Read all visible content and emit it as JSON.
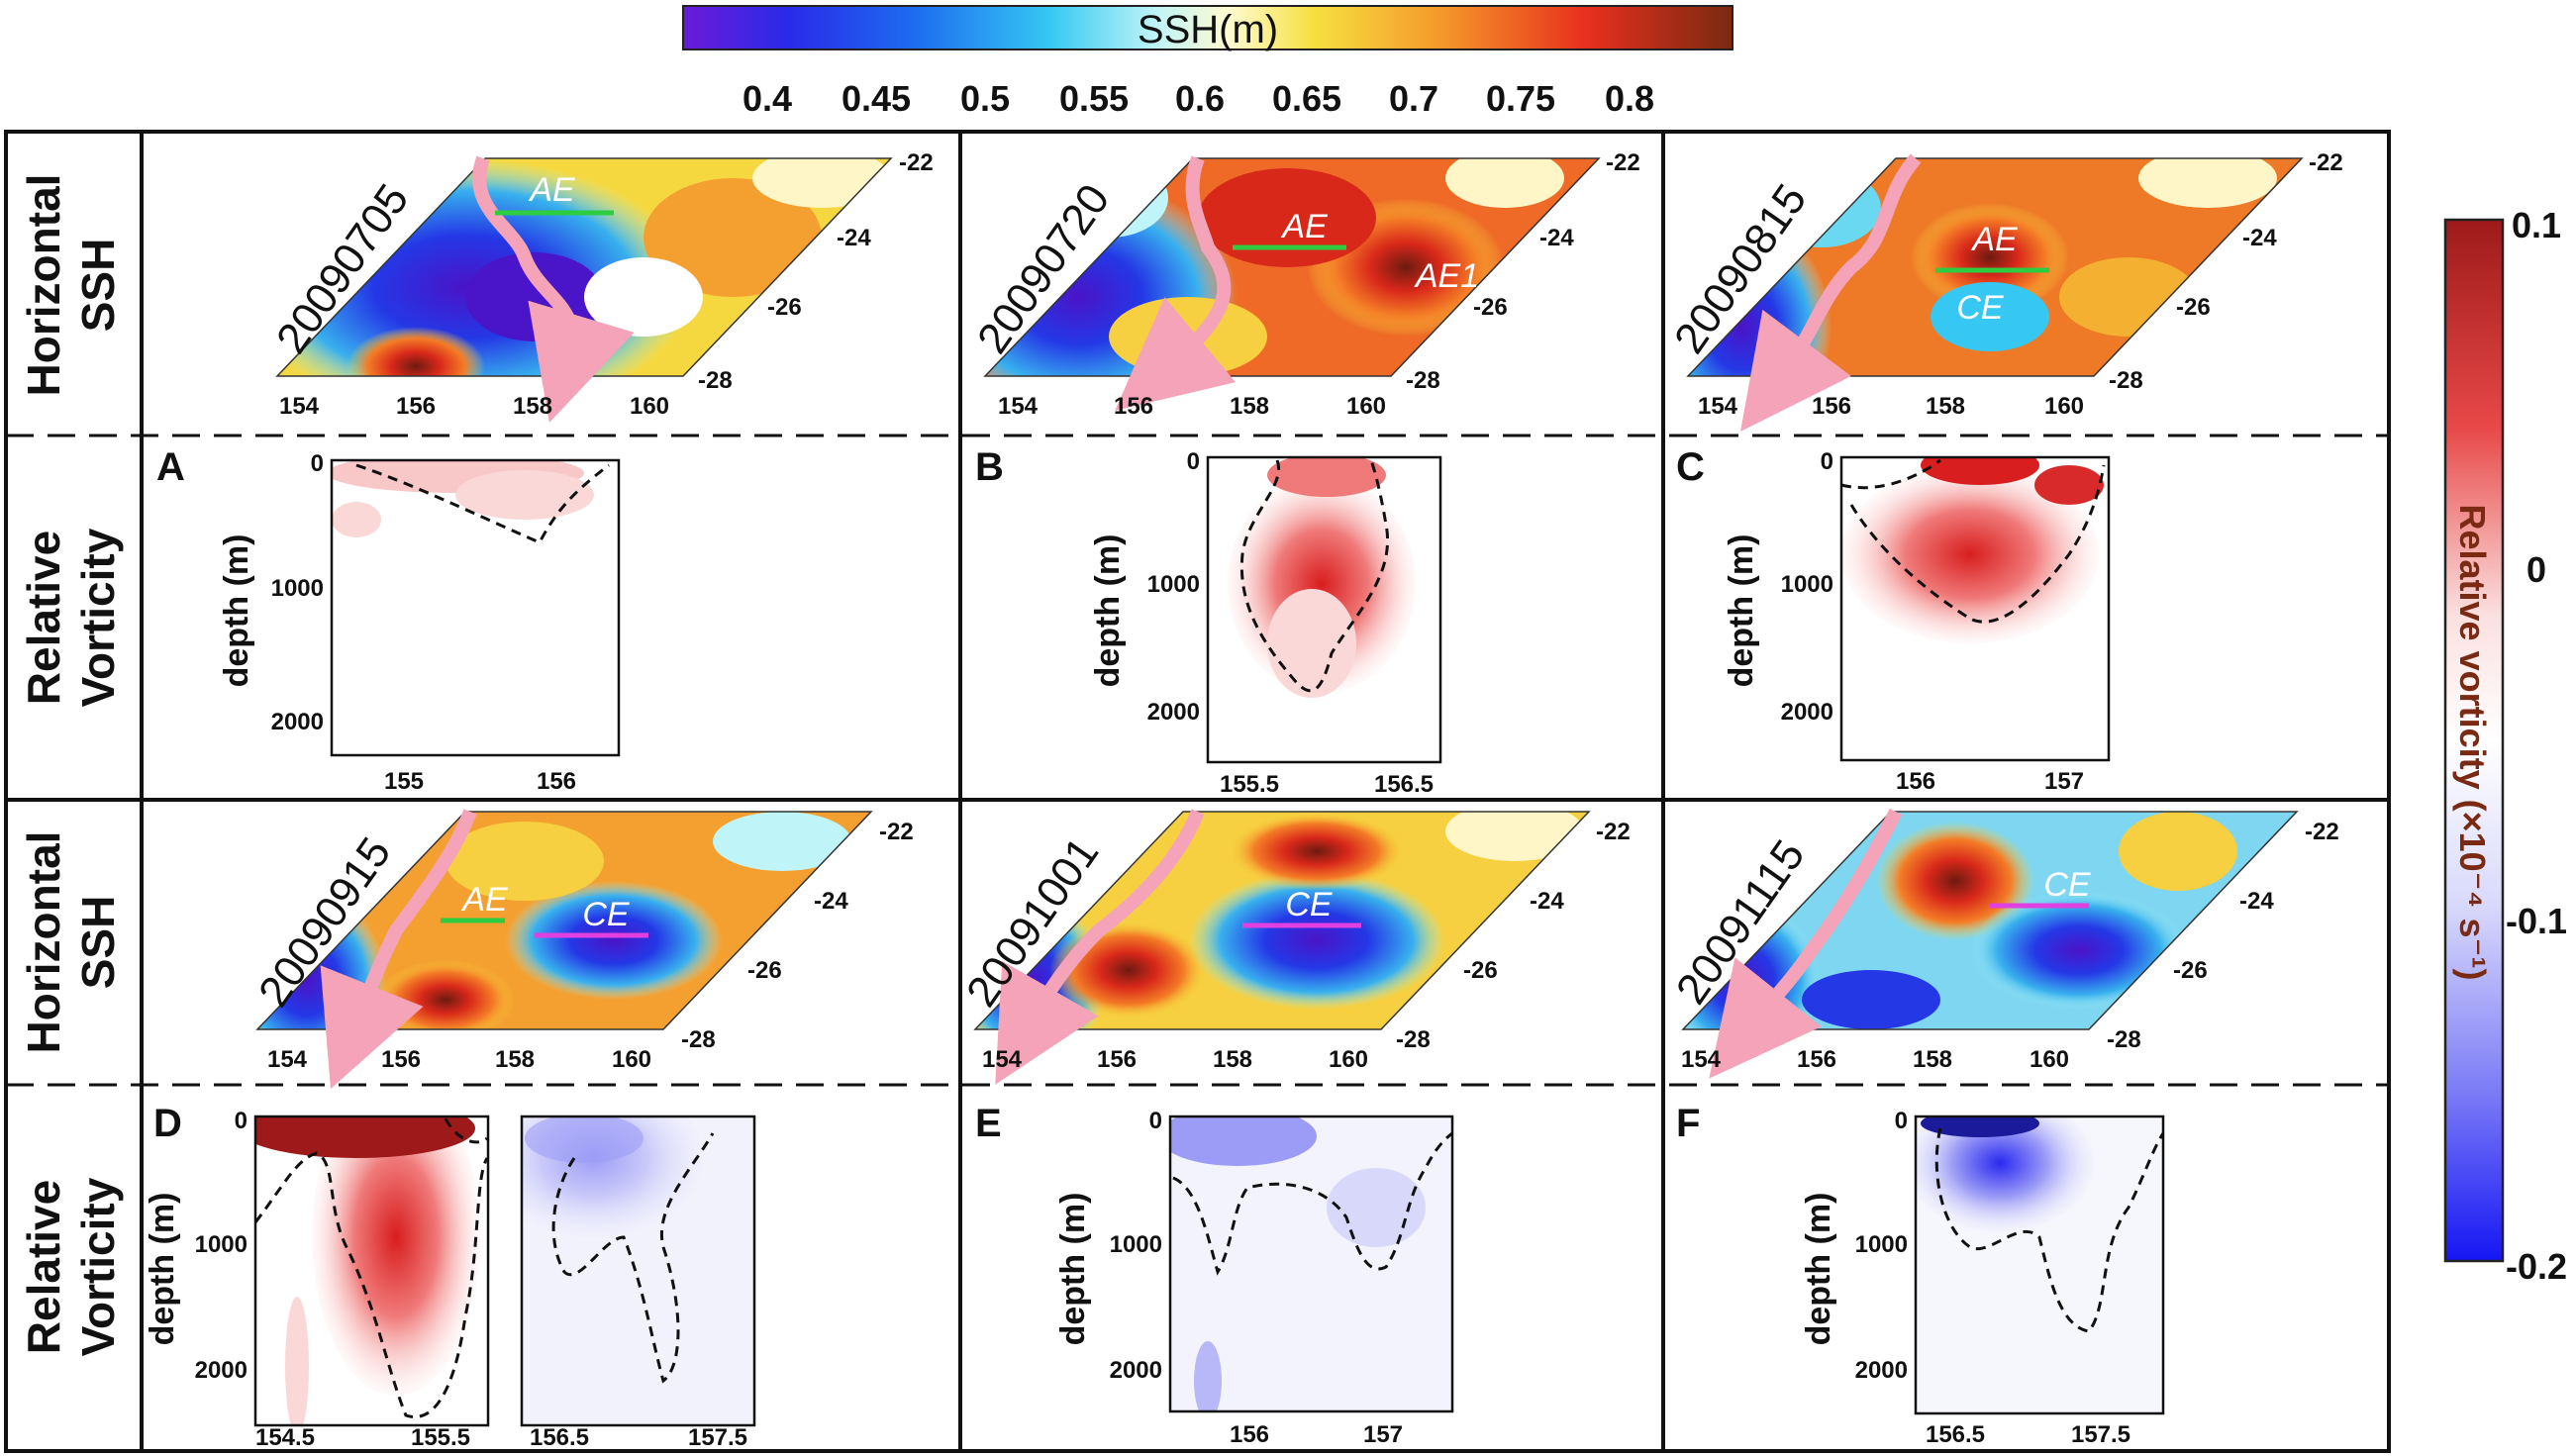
{
  "ssh_colorbar": {
    "title": "SSH(m)",
    "ticks": [
      "0.4",
      "0.45",
      "0.5",
      "0.55",
      "0.6",
      "0.65",
      "0.7",
      "0.75",
      "0.8"
    ]
  },
  "rows": [
    {
      "line1": "Horizontal",
      "line2": "SSH"
    },
    {
      "line1": "Relative",
      "line2": "Vorticity"
    },
    {
      "line1": "Horizontal",
      "line2": "SSH"
    },
    {
      "line1": "Relative",
      "line2": "Vorticity"
    }
  ],
  "ssh_maps": [
    {
      "date": "20090705",
      "labels": [
        "AE"
      ]
    },
    {
      "date": "20090720",
      "labels": [
        "AE",
        "AE1"
      ]
    },
    {
      "date": "20090815",
      "labels": [
        "AE",
        "CE"
      ]
    },
    {
      "date": "20090915",
      "labels": [
        "AE",
        "CE"
      ]
    },
    {
      "date": "20091001",
      "labels": [
        "CE"
      ]
    },
    {
      "date": "20091115",
      "labels": [
        "CE"
      ]
    }
  ],
  "map_axis": {
    "lon_ticks": [
      "154",
      "156",
      "158",
      "160"
    ],
    "lat_ticks": [
      "-22",
      "-24",
      "-26",
      "-28"
    ]
  },
  "vorticity_panels": [
    {
      "letter": "A",
      "ylabel": "depth (m)",
      "yticks": [
        "0",
        "1000",
        "2000"
      ],
      "xticks": [
        "155",
        "156"
      ]
    },
    {
      "letter": "B",
      "ylabel": "depth (m)",
      "yticks": [
        "0",
        "1000",
        "2000"
      ],
      "xticks": [
        "155.5",
        "156.5"
      ]
    },
    {
      "letter": "C",
      "ylabel": "depth (m)",
      "yticks": [
        "0",
        "1000",
        "2000"
      ],
      "xticks": [
        "156",
        "157"
      ]
    },
    {
      "letter": "D",
      "ylabel": "depth (m)",
      "yticks": [
        "0",
        "1000",
        "2000"
      ],
      "xticks": [
        "154.5",
        "155.5"
      ],
      "xticks2": [
        "156.5",
        "157.5"
      ]
    },
    {
      "letter": "E",
      "ylabel": "depth (m)",
      "yticks": [
        "0",
        "1000",
        "2000"
      ],
      "xticks": [
        "156",
        "157"
      ]
    },
    {
      "letter": "F",
      "ylabel": "depth (m)",
      "yticks": [
        "0",
        "1000",
        "2000"
      ],
      "xticks": [
        "156.5",
        "157.5"
      ]
    }
  ],
  "vort_colorbar": {
    "title": "Relative vorticity (×10⁻⁴ s⁻¹)",
    "ticks": [
      "0.1",
      "0",
      "-0.1",
      "-0.2"
    ]
  },
  "colors": {
    "ssh_low": "#5a1fd6",
    "ssh_mid": "#38d8f0",
    "ssh_high": "#8a2a10",
    "vort_pos": "#b01010",
    "vort_neg": "#1a1aff",
    "ae_line": "#2ecc40",
    "ce_line": "#e040e0",
    "current_arrow": "#f4a3b8"
  }
}
